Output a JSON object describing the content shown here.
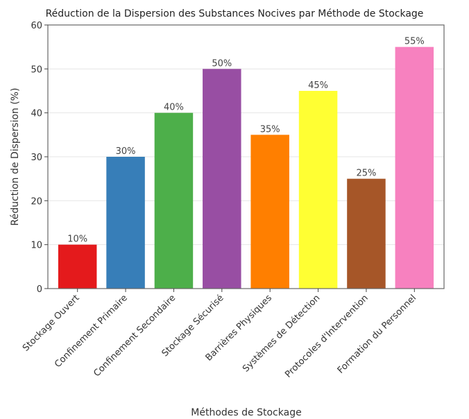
{
  "chart_data": {
    "type": "bar",
    "title": "Réduction de la Dispersion des Substances Nocives par Méthode de Stockage",
    "xlabel": "Méthodes de Stockage",
    "ylabel": "Réduction de Dispersion (%)",
    "ylim": [
      0,
      60
    ],
    "yticks": [
      0,
      10,
      20,
      30,
      40,
      50,
      60
    ],
    "grid": true,
    "categories": [
      "Stockage Ouvert",
      "Confinement Primaire",
      "Confinement Secondaire",
      "Stockage Sécurisé",
      "Barrières Physiques",
      "Systèmes de Détection",
      "Protocoles d'Intervention",
      "Formation du Personnel"
    ],
    "values": [
      10,
      30,
      40,
      50,
      35,
      45,
      25,
      55
    ],
    "data_labels": [
      "10%",
      "30%",
      "40%",
      "50%",
      "35%",
      "45%",
      "25%",
      "55%"
    ],
    "colors": [
      "#e41a1c",
      "#377eb8",
      "#4daf4a",
      "#984ea3",
      "#ff7f00",
      "#ffff33",
      "#a65628",
      "#f781bf"
    ]
  }
}
